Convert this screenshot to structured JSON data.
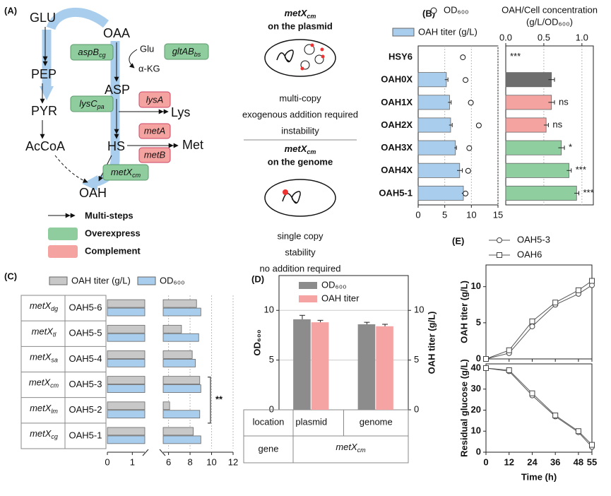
{
  "panel_labels": [
    "(A)",
    "(B)",
    "(C)",
    "(D)",
    "(E)"
  ],
  "diagram": {
    "metabolites": [
      "GLU",
      "OAA",
      "PEP",
      "PYR",
      "AcCoA",
      "ASP",
      "HS",
      "OAH",
      "Lys",
      "Met",
      "Glu",
      "α-KG"
    ],
    "overexpressed": [
      {
        "name": "aspB",
        "sub": "cg"
      },
      {
        "name": "gltAB",
        "sub": "bs"
      },
      {
        "name": "lysC",
        "sub": "pa"
      },
      {
        "name": "metX",
        "sub": "cm"
      }
    ],
    "complemented": [
      "lysA",
      "metA",
      "metB"
    ],
    "legend": [
      "Multi-steps",
      "Overexpress",
      "Complement"
    ]
  },
  "comparison": [
    {
      "gene": {
        "name": "metX",
        "sub": "cm"
      },
      "heading": "on the plasmid",
      "features": [
        "multi-copy",
        "exogenous addition required",
        "instability"
      ]
    },
    {
      "gene": {
        "name": "metX",
        "sub": "cm"
      },
      "heading": "on the genome",
      "features": [
        "single copy",
        "stability",
        "no addition required"
      ]
    }
  ],
  "chart_data": [
    {
      "type": "bar",
      "orientation": "horizontal",
      "categories": [
        "HSY6",
        "OAH0X",
        "OAH1X",
        "OAH2X",
        "OAH3X",
        "OAH4X",
        "OAH5-1"
      ],
      "series": [
        {
          "name": "OAH titer (g/L)",
          "color": "#a9cdec",
          "values": [
            0,
            5.3,
            5.9,
            6.1,
            7.0,
            7.8,
            8.5
          ],
          "errors": [
            0,
            0.3,
            0.3,
            0.3,
            0.2,
            0.5,
            0.3
          ]
        },
        {
          "name": "OD₆₀₀",
          "type": "scatter",
          "color": "#ffffff",
          "values": [
            8.4,
            8.9,
            9.9,
            11.4,
            9.6,
            9.4,
            8.9
          ]
        }
      ],
      "xlim": [
        0,
        15
      ],
      "xticks": [
        0,
        5,
        10,
        15
      ],
      "grid": true
    },
    {
      "type": "bar",
      "orientation": "horizontal",
      "xlabel": [
        "OAH/Cell concentration",
        "(g/L/OD₆₀₀)"
      ],
      "xaxis": "top",
      "series": [
        {
          "values": [
            0,
            0.6,
            0.6,
            0.53,
            0.73,
            0.83,
            0.93
          ],
          "errors": [
            0,
            0.04,
            0.04,
            0.03,
            0.04,
            0.03,
            0.03
          ],
          "colors": [
            "#6e6e6e",
            "#6e6e6e",
            "#f4a3a0",
            "#f4a3a0",
            "#8fcf9f",
            "#8fcf9f",
            "#8fcf9f"
          ]
        }
      ],
      "annotations": [
        "***",
        null,
        "ns",
        "ns",
        "*",
        "***",
        "***"
      ],
      "xlim": [
        0,
        1.15
      ],
      "xticks": [
        {
          "value": 0,
          "label": "0.0"
        },
        0.5,
        {
          "value": 1,
          "label": "1.0"
        }
      ],
      "grid": true
    },
    {
      "type": "bar",
      "orientation": "horizontal",
      "categories": [
        "OAH5-6",
        "OAH5-5",
        "OAH5-4",
        "OAH5-3",
        "OAH5-2",
        "OAH5-1"
      ],
      "genes": [
        {
          "name": "metX",
          "sub": "dg"
        },
        {
          "name": "metX",
          "sub": "tl"
        },
        {
          "name": "metX",
          "sub": "sa"
        },
        {
          "name": "metX",
          "sub": "cm"
        },
        {
          "name": "metX",
          "sub": "lm"
        },
        {
          "name": "metX",
          "sub": "cg"
        }
      ],
      "series": [
        {
          "name": "OAH titer (g/L)",
          "color": "#c8c8c8",
          "values": [
            8.6,
            7.2,
            8.2,
            8.9,
            6.1,
            8.3
          ]
        },
        {
          "name": "OD₆₀₀",
          "color": "#a9cdec",
          "values": [
            9.0,
            8.8,
            8.5,
            9.0,
            8.9,
            9.0
          ]
        }
      ],
      "xlim": [
        0,
        12
      ],
      "xbreak": [
        1.5,
        5.5
      ],
      "xticks": [
        0,
        1,
        6,
        8,
        10,
        12
      ],
      "grid": true,
      "annotation": "**"
    },
    {
      "type": "bar",
      "orientation": "vertical",
      "categories": [
        "plasmid",
        "genome"
      ],
      "series": [
        {
          "name": "OD₆₀₀",
          "color": "#8c8c8c",
          "values": [
            9.1,
            8.6
          ],
          "errors": [
            0.4,
            0.2
          ]
        },
        {
          "name": "OAH titer",
          "color": "#f5a3a3",
          "values": [
            8.8,
            8.4
          ],
          "errors": [
            0.2,
            0.2
          ]
        }
      ],
      "ylabel": "OD₆₀₀",
      "y2label": "OAH titer (g/L)",
      "ylim": [
        0,
        13.5
      ],
      "yticks": [
        0,
        5,
        10
      ],
      "y2lim": [
        0,
        13.5
      ],
      "y2ticks": [
        0,
        5,
        10
      ],
      "grid": true,
      "legend": "top-left",
      "row_labels": [
        "location",
        "gene"
      ],
      "gene": {
        "name": "metX",
        "sub": "cm"
      }
    },
    {
      "type": "line",
      "x": [
        0,
        12,
        24,
        36,
        48,
        55
      ],
      "ylabel": "OAH titer (g/L)",
      "series": [
        {
          "name": "OAH5-3",
          "marker": "circle",
          "color": "#555555",
          "values": [
            0,
            0.8,
            4.5,
            7.5,
            9.0,
            10.2
          ]
        },
        {
          "name": "OAH6",
          "marker": "square",
          "color": "#555555",
          "values": [
            0,
            1.2,
            5.2,
            7.8,
            9.5,
            10.8
          ]
        }
      ],
      "xlim": [
        0,
        55
      ],
      "xticks": [
        0,
        12,
        24,
        36,
        48,
        55
      ],
      "show_xtick_labels": false,
      "ylim": [
        0,
        13
      ],
      "yticks": [
        0,
        5,
        10
      ]
    },
    {
      "type": "line",
      "x": [
        0,
        12,
        24,
        36,
        48,
        55
      ],
      "ylabel": "Residual glucose (g/L)",
      "xlabel": "Time (h)",
      "series": [
        {
          "marker": "circle",
          "color": "#555555",
          "values": [
            40,
            38.5,
            27,
            17,
            9.5,
            2.5
          ]
        },
        {
          "marker": "square",
          "color": "#555555",
          "values": [
            40,
            39,
            28,
            17.5,
            10,
            3.5
          ]
        }
      ],
      "xlim": [
        0,
        55
      ],
      "xticks": [
        0,
        12,
        24,
        36,
        48,
        55
      ],
      "ylim": [
        0,
        42
      ],
      "yticks": [
        0,
        10,
        20,
        30,
        40
      ]
    }
  ]
}
